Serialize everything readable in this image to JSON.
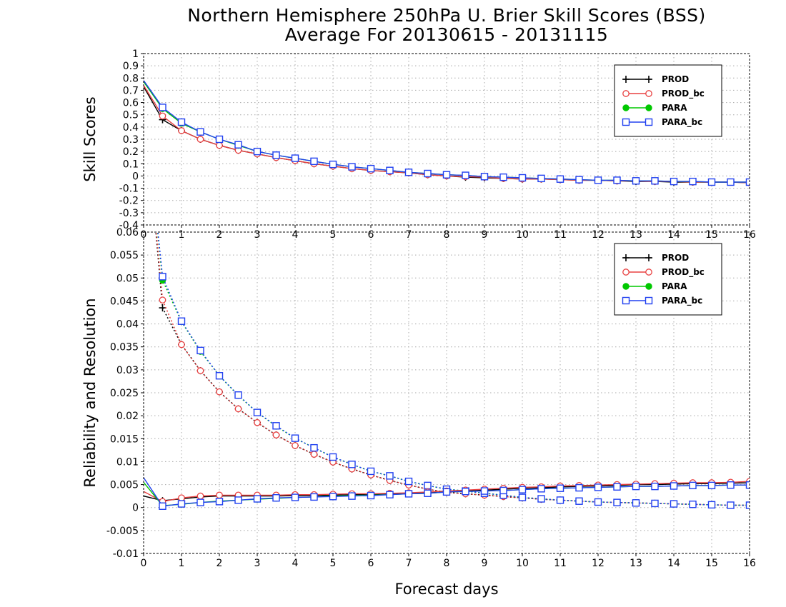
{
  "title_line1": "Northern Hemisphere 250hPa U. Brier Skill Scores (BSS)",
  "title_line2": "Average For 20130615 - 20131115",
  "xlabel": "Forecast days",
  "colors": {
    "PROD": "#000000",
    "PROD_bc": "#e84040",
    "PARA": "#00c800",
    "PARA_bc": "#2040f0"
  },
  "chart_data": [
    {
      "type": "line",
      "ylabel": "Skill Scores",
      "xlim": [
        0,
        16
      ],
      "ylim": [
        -0.4,
        1.0
      ],
      "grid": true,
      "legend_position": "top-right",
      "xticks": [
        0,
        1,
        2,
        3,
        4,
        5,
        6,
        7,
        8,
        9,
        10,
        11,
        12,
        13,
        14,
        15,
        16
      ],
      "yticks": [
        -0.4,
        -0.3,
        -0.2,
        -0.1,
        0,
        0.1,
        0.2,
        0.3,
        0.4,
        0.5,
        0.6,
        0.7,
        0.8,
        0.9,
        1
      ],
      "ytick_labels": [
        "-0.4",
        "-0.3",
        "-0.2",
        "-0.1",
        "0",
        "0.1",
        "0.2",
        "0.3",
        "0.4",
        "0.5",
        "0.6",
        "0.7",
        "0.8",
        "0.9",
        "1"
      ],
      "x": [
        0,
        0.5,
        1,
        1.5,
        2,
        2.5,
        3,
        3.5,
        4,
        4.5,
        5,
        5.5,
        6,
        6.5,
        7,
        7.5,
        8,
        8.5,
        9,
        9.5,
        10,
        10.5,
        11,
        11.5,
        12,
        12.5,
        13,
        13.5,
        14,
        14.5,
        15,
        15.5,
        16
      ],
      "series": [
        {
          "name": "PROD",
          "marker": "plus",
          "line": "solid",
          "values": [
            0.73,
            0.46,
            0.37,
            0.3,
            0.25,
            0.21,
            0.18,
            0.15,
            0.125,
            0.1,
            0.08,
            0.06,
            0.045,
            0.035,
            0.025,
            0.01,
            0.0,
            -0.01,
            -0.015,
            -0.02,
            -0.025,
            -0.025,
            -0.03,
            -0.035,
            -0.035,
            -0.04,
            -0.045,
            -0.045,
            -0.05,
            -0.05,
            -0.05,
            -0.05,
            -0.055
          ]
        },
        {
          "name": "PROD_bc",
          "marker": "circle",
          "line": "solid",
          "values": [
            0.74,
            0.49,
            0.37,
            0.3,
            0.25,
            0.21,
            0.18,
            0.15,
            0.125,
            0.1,
            0.08,
            0.06,
            0.045,
            0.035,
            0.025,
            0.01,
            0.0,
            -0.005,
            -0.01,
            -0.02,
            -0.025,
            -0.025,
            -0.03,
            -0.035,
            -0.035,
            -0.04,
            -0.04,
            -0.045,
            -0.045,
            -0.05,
            -0.05,
            -0.05,
            -0.055
          ]
        },
        {
          "name": "PARA",
          "marker": "dot",
          "line": "solid",
          "values": [
            0.77,
            0.55,
            0.43,
            0.36,
            0.3,
            0.25,
            0.2,
            0.17,
            0.145,
            0.12,
            0.095,
            0.075,
            0.06,
            0.045,
            0.03,
            0.02,
            0.01,
            0.005,
            -0.005,
            -0.01,
            -0.015,
            -0.02,
            -0.025,
            -0.03,
            -0.035,
            -0.035,
            -0.04,
            -0.04,
            -0.045,
            -0.045,
            -0.05,
            -0.05,
            -0.05
          ]
        },
        {
          "name": "PARA_bc",
          "marker": "square",
          "line": "solid",
          "values": [
            0.78,
            0.56,
            0.44,
            0.36,
            0.3,
            0.255,
            0.2,
            0.17,
            0.145,
            0.12,
            0.095,
            0.075,
            0.06,
            0.045,
            0.03,
            0.02,
            0.01,
            0.005,
            -0.005,
            -0.01,
            -0.015,
            -0.02,
            -0.025,
            -0.03,
            -0.035,
            -0.035,
            -0.04,
            -0.04,
            -0.045,
            -0.045,
            -0.05,
            -0.05,
            -0.05
          ]
        }
      ]
    },
    {
      "type": "line",
      "ylabel": "Reliability and Resolution",
      "xlim": [
        0,
        16
      ],
      "ylim": [
        -0.01,
        0.06
      ],
      "grid": true,
      "legend_position": "top-right",
      "xticks": [
        0,
        1,
        2,
        3,
        4,
        5,
        6,
        7,
        8,
        9,
        10,
        11,
        12,
        13,
        14,
        15,
        16
      ],
      "yticks": [
        -0.01,
        -0.005,
        0,
        0.005,
        0.01,
        0.015,
        0.02,
        0.025,
        0.03,
        0.035,
        0.04,
        0.045,
        0.05,
        0.055,
        0.06
      ],
      "ytick_labels": [
        "-0.01",
        "-0.005",
        "0",
        "0.005",
        "0.01",
        "0.015",
        "0.02",
        "0.025",
        "0.03",
        "0.035",
        "0.04",
        "0.045",
        "0.05",
        "0.055",
        "0.06"
      ],
      "x": [
        0,
        0.5,
        1,
        1.5,
        2,
        2.5,
        3,
        3.5,
        4,
        4.5,
        5,
        5.5,
        6,
        6.5,
        7,
        7.5,
        8,
        8.5,
        9,
        9.5,
        10,
        10.5,
        11,
        11.5,
        12,
        12.5,
        13,
        13.5,
        14,
        14.5,
        15,
        15.5,
        16
      ],
      "series": [
        {
          "name": "PROD",
          "group": "resolution",
          "marker": "plus",
          "line": "dotted",
          "values": [
            0.09,
            0.0435,
            0.0355,
            0.0298,
            0.0252,
            0.0215,
            0.0185,
            0.0158,
            0.0135,
            0.0116,
            0.0099,
            0.0084,
            0.0071,
            0.0059,
            0.0049,
            0.004,
            0.0033,
            0.003,
            0.0027,
            0.0024,
            0.0021,
            0.0018,
            0.0016,
            0.0014,
            0.0012,
            0.0011,
            0.001,
            0.0009,
            0.0008,
            0.0007,
            0.0006,
            0.0005,
            0.0005
          ]
        },
        {
          "name": "PROD_bc",
          "group": "resolution",
          "marker": "circle",
          "line": "dotted",
          "values": [
            0.09,
            0.0452,
            0.0355,
            0.0298,
            0.0252,
            0.0215,
            0.0185,
            0.0158,
            0.0135,
            0.0116,
            0.0099,
            0.0084,
            0.0071,
            0.0059,
            0.0049,
            0.004,
            0.0033,
            0.003,
            0.0027,
            0.0024,
            0.0021,
            0.0018,
            0.0016,
            0.0014,
            0.0012,
            0.0011,
            0.001,
            0.0009,
            0.0008,
            0.0007,
            0.0006,
            0.0005,
            0.0005
          ]
        },
        {
          "name": "PARA",
          "group": "resolution",
          "marker": "dot",
          "line": "dotted",
          "values": [
            0.09,
            0.0495,
            0.0405,
            0.034,
            0.0287,
            0.0244,
            0.0207,
            0.0177,
            0.0151,
            0.013,
            0.011,
            0.0094,
            0.0079,
            0.0069,
            0.0057,
            0.0048,
            0.004,
            0.0036,
            0.0031,
            0.0027,
            0.0022,
            0.0019,
            0.0016,
            0.0014,
            0.0012,
            0.0011,
            0.001,
            0.0009,
            0.0008,
            0.0007,
            0.0006,
            0.0005,
            0.0005
          ]
        },
        {
          "name": "PARA_bc",
          "group": "resolution",
          "marker": "square",
          "line": "dotted",
          "values": [
            0.09,
            0.0503,
            0.0406,
            0.0342,
            0.0287,
            0.0245,
            0.0207,
            0.0178,
            0.0151,
            0.013,
            0.011,
            0.0094,
            0.0079,
            0.0069,
            0.0057,
            0.0048,
            0.004,
            0.0036,
            0.0031,
            0.0027,
            0.0022,
            0.0019,
            0.0016,
            0.0014,
            0.0012,
            0.0011,
            0.001,
            0.0009,
            0.0008,
            0.0007,
            0.0006,
            0.0005,
            0.0005
          ]
        },
        {
          "name": "PROD",
          "group": "reliability",
          "marker": "plus",
          "line": "solid",
          "values": [
            0.0025,
            0.0015,
            0.0019,
            0.0023,
            0.0025,
            0.0025,
            0.0025,
            0.0025,
            0.0026,
            0.0026,
            0.0027,
            0.0028,
            0.0029,
            0.003,
            0.0031,
            0.0032,
            0.0034,
            0.0036,
            0.0038,
            0.004,
            0.0042,
            0.0043,
            0.0045,
            0.0046,
            0.0047,
            0.0048,
            0.005,
            0.005,
            0.0051,
            0.0052,
            0.0052,
            0.0053,
            0.0054
          ]
        },
        {
          "name": "PROD_bc",
          "group": "reliability",
          "marker": "circle",
          "line": "solid",
          "values": [
            0.0035,
            0.0013,
            0.0021,
            0.0025,
            0.0027,
            0.0027,
            0.0027,
            0.0027,
            0.0028,
            0.0028,
            0.0029,
            0.003,
            0.003,
            0.0031,
            0.0032,
            0.0034,
            0.0036,
            0.0038,
            0.004,
            0.0042,
            0.0044,
            0.0045,
            0.0047,
            0.0048,
            0.0049,
            0.005,
            0.0051,
            0.0052,
            0.0053,
            0.0054,
            0.0054,
            0.0055,
            0.0057
          ]
        },
        {
          "name": "PARA",
          "group": "reliability",
          "marker": "dot",
          "line": "solid",
          "values": [
            0.0055,
            0.0004,
            0.0007,
            0.0011,
            0.0014,
            0.0016,
            0.0018,
            0.002,
            0.0022,
            0.0023,
            0.0025,
            0.0026,
            0.0027,
            0.0028,
            0.003,
            0.0031,
            0.0034,
            0.0035,
            0.0036,
            0.0037,
            0.0039,
            0.0041,
            0.0042,
            0.0043,
            0.0044,
            0.0045,
            0.0046,
            0.0046,
            0.0047,
            0.0048,
            0.0048,
            0.0049,
            0.0049
          ]
        },
        {
          "name": "PARA_bc",
          "group": "reliability",
          "marker": "square",
          "line": "solid",
          "values": [
            0.0065,
            0.0003,
            0.0008,
            0.0011,
            0.0013,
            0.0016,
            0.0019,
            0.0021,
            0.0022,
            0.0023,
            0.0024,
            0.0025,
            0.0026,
            0.0028,
            0.003,
            0.0031,
            0.0034,
            0.0035,
            0.0036,
            0.0037,
            0.0039,
            0.0041,
            0.0042,
            0.0043,
            0.0044,
            0.0045,
            0.0046,
            0.0046,
            0.0047,
            0.0048,
            0.0048,
            0.0049,
            0.0049
          ]
        }
      ]
    }
  ]
}
